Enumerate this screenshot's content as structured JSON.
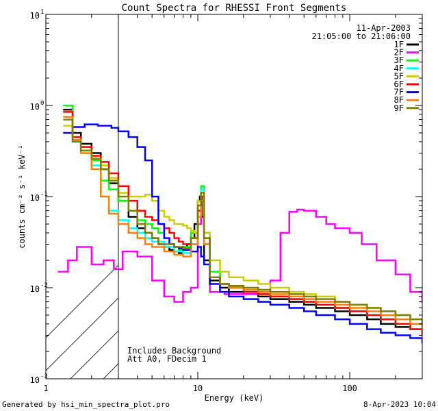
{
  "chart_data": {
    "type": "line",
    "title": "Count Spectra for RHESSI Front Segments",
    "xlabel": "Energy (keV)",
    "ylabel": "counts cm⁻² s⁻¹ keV⁻¹",
    "xscale": "log",
    "yscale": "log",
    "xlim": [
      1,
      300
    ],
    "ylim": [
      0.001,
      10
    ],
    "x_ticks": [
      {
        "value": 1,
        "label": "1"
      },
      {
        "value": 10,
        "label": "10"
      },
      {
        "value": 100,
        "label": "100"
      }
    ],
    "y_ticks": [
      {
        "value": 0.001,
        "base": "10",
        "exp": "-3"
      },
      {
        "value": 0.01,
        "base": "10",
        "exp": "-2"
      },
      {
        "value": 0.1,
        "base": "10",
        "exp": "-1"
      },
      {
        "value": 1,
        "base": "10",
        "exp": "0"
      },
      {
        "value": 10,
        "base": "10",
        "exp": "1"
      }
    ],
    "date": "11-Apr-2003",
    "time_range": "21:05:00 to 21:06:00",
    "hatched_region_keV": [
      1,
      3
    ],
    "notes": [
      "Includes Background",
      "Att A0, FDecim 1"
    ],
    "series": [
      {
        "name": "1F",
        "color": "#000000",
        "x": [
          1.3,
          1.5,
          1.7,
          2.0,
          2.3,
          2.6,
          3.0,
          3.5,
          4.0,
          4.5,
          5,
          5.5,
          6,
          6.5,
          7,
          7.5,
          8,
          8.5,
          9,
          9.5,
          10,
          10.3,
          10.6,
          11,
          12,
          14,
          16,
          20,
          25,
          30,
          40,
          50,
          60,
          80,
          100,
          130,
          160,
          200,
          250,
          300
        ],
        "y": [
          0.9,
          0.5,
          0.38,
          0.3,
          0.2,
          0.14,
          0.09,
          0.06,
          0.045,
          0.04,
          0.035,
          0.03,
          0.028,
          0.026,
          0.025,
          0.024,
          0.028,
          0.03,
          0.035,
          0.05,
          0.09,
          0.1,
          0.06,
          0.02,
          0.012,
          0.01,
          0.009,
          0.0085,
          0.008,
          0.0075,
          0.007,
          0.0065,
          0.006,
          0.0055,
          0.005,
          0.0045,
          0.004,
          0.0037,
          0.0035,
          0.003
        ]
      },
      {
        "name": "2F",
        "color": "#ff00ff",
        "x": [
          1.2,
          1.4,
          1.6,
          2.0,
          2.4,
          2.8,
          3.2,
          4,
          5,
          6,
          7,
          8,
          9,
          10,
          10.5,
          11,
          12,
          15,
          20,
          25,
          30,
          35,
          40,
          45,
          50,
          60,
          70,
          80,
          100,
          120,
          150,
          200,
          250,
          300
        ],
        "y": [
          0.015,
          0.02,
          0.028,
          0.018,
          0.02,
          0.016,
          0.025,
          0.022,
          0.012,
          0.008,
          0.007,
          0.009,
          0.01,
          0.05,
          0.12,
          0.03,
          0.009,
          0.0085,
          0.0085,
          0.009,
          0.012,
          0.04,
          0.068,
          0.072,
          0.07,
          0.06,
          0.05,
          0.045,
          0.04,
          0.03,
          0.02,
          0.014,
          0.009,
          0.007
        ]
      },
      {
        "name": "3F",
        "color": "#00ff00",
        "x": [
          1.3,
          1.5,
          1.7,
          2.0,
          2.3,
          2.6,
          3.0,
          3.5,
          4.0,
          4.5,
          5,
          5.5,
          6,
          6.5,
          7,
          7.5,
          8,
          9,
          10,
          10.5,
          11,
          12,
          14,
          16,
          20,
          25,
          30,
          40,
          50,
          60,
          80,
          100,
          130,
          160,
          200,
          250,
          300
        ],
        "y": [
          1.0,
          0.42,
          0.32,
          0.25,
          0.15,
          0.12,
          0.09,
          0.07,
          0.055,
          0.05,
          0.045,
          0.04,
          0.035,
          0.03,
          0.028,
          0.026,
          0.028,
          0.04,
          0.08,
          0.13,
          0.04,
          0.015,
          0.011,
          0.01,
          0.009,
          0.0085,
          0.008,
          0.0075,
          0.007,
          0.0065,
          0.006,
          0.0055,
          0.005,
          0.0045,
          0.004,
          0.0035,
          0.003
        ]
      },
      {
        "name": "4F",
        "color": "#00ffff",
        "x": [
          1.3,
          1.5,
          1.7,
          2.0,
          2.3,
          2.6,
          3.0,
          3.5,
          4.0,
          4.5,
          5,
          6,
          7,
          8,
          9,
          10,
          10.5,
          11,
          12,
          14,
          16,
          20,
          25,
          30,
          40,
          50,
          60,
          80,
          100,
          130,
          160,
          200,
          250,
          300
        ],
        "y": [
          0.85,
          0.4,
          0.3,
          0.22,
          0.1,
          0.07,
          0.055,
          0.045,
          0.04,
          0.035,
          0.032,
          0.028,
          0.025,
          0.024,
          0.03,
          0.07,
          0.12,
          0.035,
          0.013,
          0.011,
          0.01,
          0.009,
          0.0085,
          0.008,
          0.0075,
          0.007,
          0.0065,
          0.006,
          0.0055,
          0.005,
          0.0045,
          0.004,
          0.0035,
          0.003
        ]
      },
      {
        "name": "5F",
        "color": "#cccc00",
        "x": [
          1.3,
          1.5,
          1.7,
          2.0,
          2.3,
          2.6,
          3.0,
          3.5,
          4.0,
          4.5,
          5,
          5.5,
          6,
          6.5,
          7,
          7.5,
          8,
          8.5,
          9,
          9.5,
          10,
          10.5,
          11,
          12,
          14,
          16,
          20,
          25,
          30,
          40,
          50,
          60,
          80,
          100,
          130,
          160,
          200,
          250,
          300
        ],
        "y": [
          0.6,
          0.42,
          0.35,
          0.28,
          0.22,
          0.16,
          0.11,
          0.1,
          0.1,
          0.105,
          0.09,
          0.07,
          0.06,
          0.055,
          0.05,
          0.05,
          0.048,
          0.045,
          0.042,
          0.04,
          0.09,
          0.11,
          0.04,
          0.02,
          0.015,
          0.013,
          0.012,
          0.011,
          0.01,
          0.009,
          0.0085,
          0.008,
          0.007,
          0.0065,
          0.006,
          0.0055,
          0.005,
          0.0045,
          0.004
        ]
      },
      {
        "name": "6F",
        "color": "#ff0000",
        "x": [
          1.3,
          1.5,
          1.7,
          2.0,
          2.3,
          2.6,
          3.0,
          3.5,
          4.0,
          4.5,
          5,
          5.5,
          6,
          6.5,
          7,
          7.5,
          8,
          9,
          10,
          10.5,
          11,
          12,
          14,
          16,
          20,
          25,
          30,
          40,
          50,
          60,
          80,
          100,
          130,
          160,
          200,
          250,
          300
        ],
        "y": [
          0.85,
          0.45,
          0.35,
          0.28,
          0.24,
          0.18,
          0.13,
          0.09,
          0.07,
          0.06,
          0.055,
          0.05,
          0.045,
          0.04,
          0.035,
          0.032,
          0.03,
          0.035,
          0.07,
          0.1,
          0.035,
          0.013,
          0.011,
          0.01,
          0.009,
          0.0085,
          0.008,
          0.0075,
          0.007,
          0.0065,
          0.006,
          0.0055,
          0.005,
          0.0045,
          0.004,
          0.0035,
          0.003
        ]
      },
      {
        "name": "7F",
        "color": "#0000ff",
        "x": [
          1.3,
          1.5,
          1.8,
          2.2,
          2.7,
          3.0,
          3.5,
          4.0,
          4.5,
          5.0,
          5.5,
          6,
          6.5,
          7,
          7.5,
          8,
          9,
          10,
          10.5,
          11,
          12,
          14,
          16,
          20,
          25,
          30,
          40,
          50,
          60,
          80,
          100,
          130,
          160,
          200,
          250,
          300
        ],
        "y": [
          0.5,
          0.58,
          0.62,
          0.6,
          0.57,
          0.52,
          0.45,
          0.35,
          0.25,
          0.1,
          0.05,
          0.035,
          0.03,
          0.028,
          0.027,
          0.026,
          0.025,
          0.028,
          0.022,
          0.018,
          0.011,
          0.009,
          0.008,
          0.0075,
          0.007,
          0.0065,
          0.006,
          0.0055,
          0.005,
          0.0045,
          0.004,
          0.0035,
          0.0032,
          0.003,
          0.0028,
          0.0025
        ]
      },
      {
        "name": "8F",
        "color": "#ff8000",
        "x": [
          1.3,
          1.5,
          1.7,
          2.0,
          2.3,
          2.6,
          3.0,
          3.5,
          4.0,
          4.5,
          5,
          6,
          7,
          8,
          9,
          10,
          10.5,
          11,
          12,
          14,
          16,
          20,
          25,
          30,
          40,
          50,
          60,
          80,
          100,
          130,
          160,
          200,
          250,
          300
        ],
        "y": [
          0.75,
          0.42,
          0.3,
          0.2,
          0.1,
          0.065,
          0.05,
          0.04,
          0.035,
          0.03,
          0.028,
          0.025,
          0.023,
          0.022,
          0.03,
          0.06,
          0.09,
          0.03,
          0.013,
          0.011,
          0.01,
          0.0095,
          0.009,
          0.0085,
          0.008,
          0.0075,
          0.007,
          0.0065,
          0.006,
          0.0055,
          0.005,
          0.0045,
          0.004,
          0.0035
        ]
      },
      {
        "name": "9F",
        "color": "#808000",
        "x": [
          1.3,
          1.5,
          1.7,
          2.0,
          2.3,
          2.6,
          3.0,
          3.5,
          4.0,
          4.5,
          5,
          5.5,
          6,
          7,
          8,
          9,
          10,
          10.5,
          11,
          12,
          14,
          16,
          20,
          25,
          30,
          40,
          50,
          60,
          80,
          100,
          130,
          160,
          200,
          250,
          300
        ],
        "y": [
          0.7,
          0.4,
          0.32,
          0.26,
          0.2,
          0.15,
          0.1,
          0.07,
          0.05,
          0.04,
          0.035,
          0.03,
          0.03,
          0.028,
          0.027,
          0.035,
          0.08,
          0.11,
          0.035,
          0.013,
          0.011,
          0.0105,
          0.01,
          0.0095,
          0.009,
          0.0085,
          0.008,
          0.0075,
          0.007,
          0.0065,
          0.006,
          0.0055,
          0.005,
          0.0045,
          0.004
        ]
      }
    ]
  },
  "footer": {
    "generated_by": "Generated by hsi_min_spectra_plot.pro",
    "timestamp": "8-Apr-2023 10:04"
  }
}
